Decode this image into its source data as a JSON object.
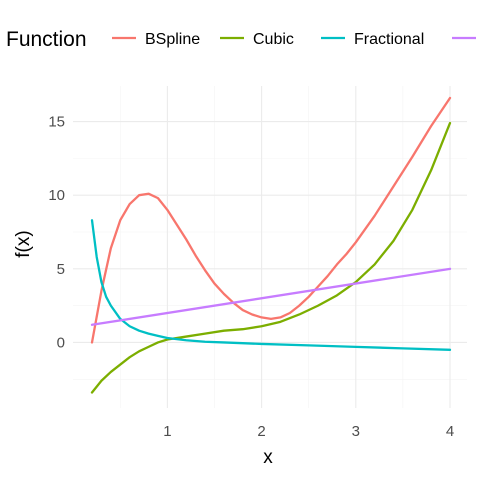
{
  "chart_data": {
    "type": "line",
    "xlabel": "x",
    "ylabel": "f(x)",
    "xlim": [
      0.2,
      4.0
    ],
    "ylim": [
      -3.5,
      16.6
    ],
    "x_ticks": [
      1,
      2,
      3,
      4
    ],
    "y_ticks": [
      0,
      5,
      10,
      15
    ],
    "grid": true,
    "legend": {
      "title": "Function",
      "placement": "top"
    },
    "series": [
      {
        "name": "BSpline",
        "color": "#F8766D",
        "x": [
          0.2,
          0.3,
          0.4,
          0.5,
          0.6,
          0.7,
          0.8,
          0.9,
          1.0,
          1.1,
          1.2,
          1.3,
          1.4,
          1.5,
          1.6,
          1.7,
          1.8,
          1.9,
          2.0,
          2.1,
          2.2,
          2.3,
          2.4,
          2.5,
          2.6,
          2.7,
          2.8,
          2.9,
          3.0,
          3.2,
          3.4,
          3.6,
          3.8,
          4.0
        ],
        "y": [
          0.0,
          3.5,
          6.4,
          8.3,
          9.4,
          10.0,
          10.1,
          9.8,
          9.0,
          8.0,
          7.0,
          5.9,
          4.9,
          4.0,
          3.3,
          2.7,
          2.2,
          1.9,
          1.7,
          1.6,
          1.7,
          2.0,
          2.5,
          3.1,
          3.8,
          4.5,
          5.3,
          6.0,
          6.8,
          8.6,
          10.6,
          12.6,
          14.7,
          16.6
        ]
      },
      {
        "name": "Cubic",
        "color": "#7CAE00",
        "x": [
          0.2,
          0.3,
          0.4,
          0.5,
          0.6,
          0.7,
          0.8,
          0.9,
          1.0,
          1.2,
          1.4,
          1.6,
          1.8,
          2.0,
          2.2,
          2.4,
          2.6,
          2.8,
          3.0,
          3.2,
          3.4,
          3.6,
          3.8,
          4.0
        ],
        "y": [
          -3.4,
          -2.6,
          -2.0,
          -1.5,
          -1.0,
          -0.6,
          -0.3,
          0.0,
          0.2,
          0.4,
          0.6,
          0.8,
          0.9,
          1.1,
          1.4,
          1.9,
          2.5,
          3.2,
          4.1,
          5.3,
          6.9,
          9.0,
          11.7,
          14.9
        ]
      },
      {
        "name": "Fractional",
        "color": "#00BFC4",
        "x": [
          0.2,
          0.25,
          0.3,
          0.35,
          0.4,
          0.5,
          0.6,
          0.7,
          0.8,
          0.9,
          1.0,
          1.2,
          1.4,
          1.6,
          1.8,
          2.0,
          2.5,
          3.0,
          3.5,
          4.0
        ],
        "y": [
          8.3,
          5.8,
          4.1,
          3.1,
          2.5,
          1.6,
          1.1,
          0.8,
          0.6,
          0.45,
          0.3,
          0.15,
          0.05,
          0.0,
          -0.05,
          -0.1,
          -0.2,
          -0.3,
          -0.4,
          -0.5
        ]
      },
      {
        "name": "",
        "color": "#C77CFF",
        "x": [
          0.2,
          4.0
        ],
        "y": [
          1.2,
          5.0
        ]
      }
    ]
  }
}
